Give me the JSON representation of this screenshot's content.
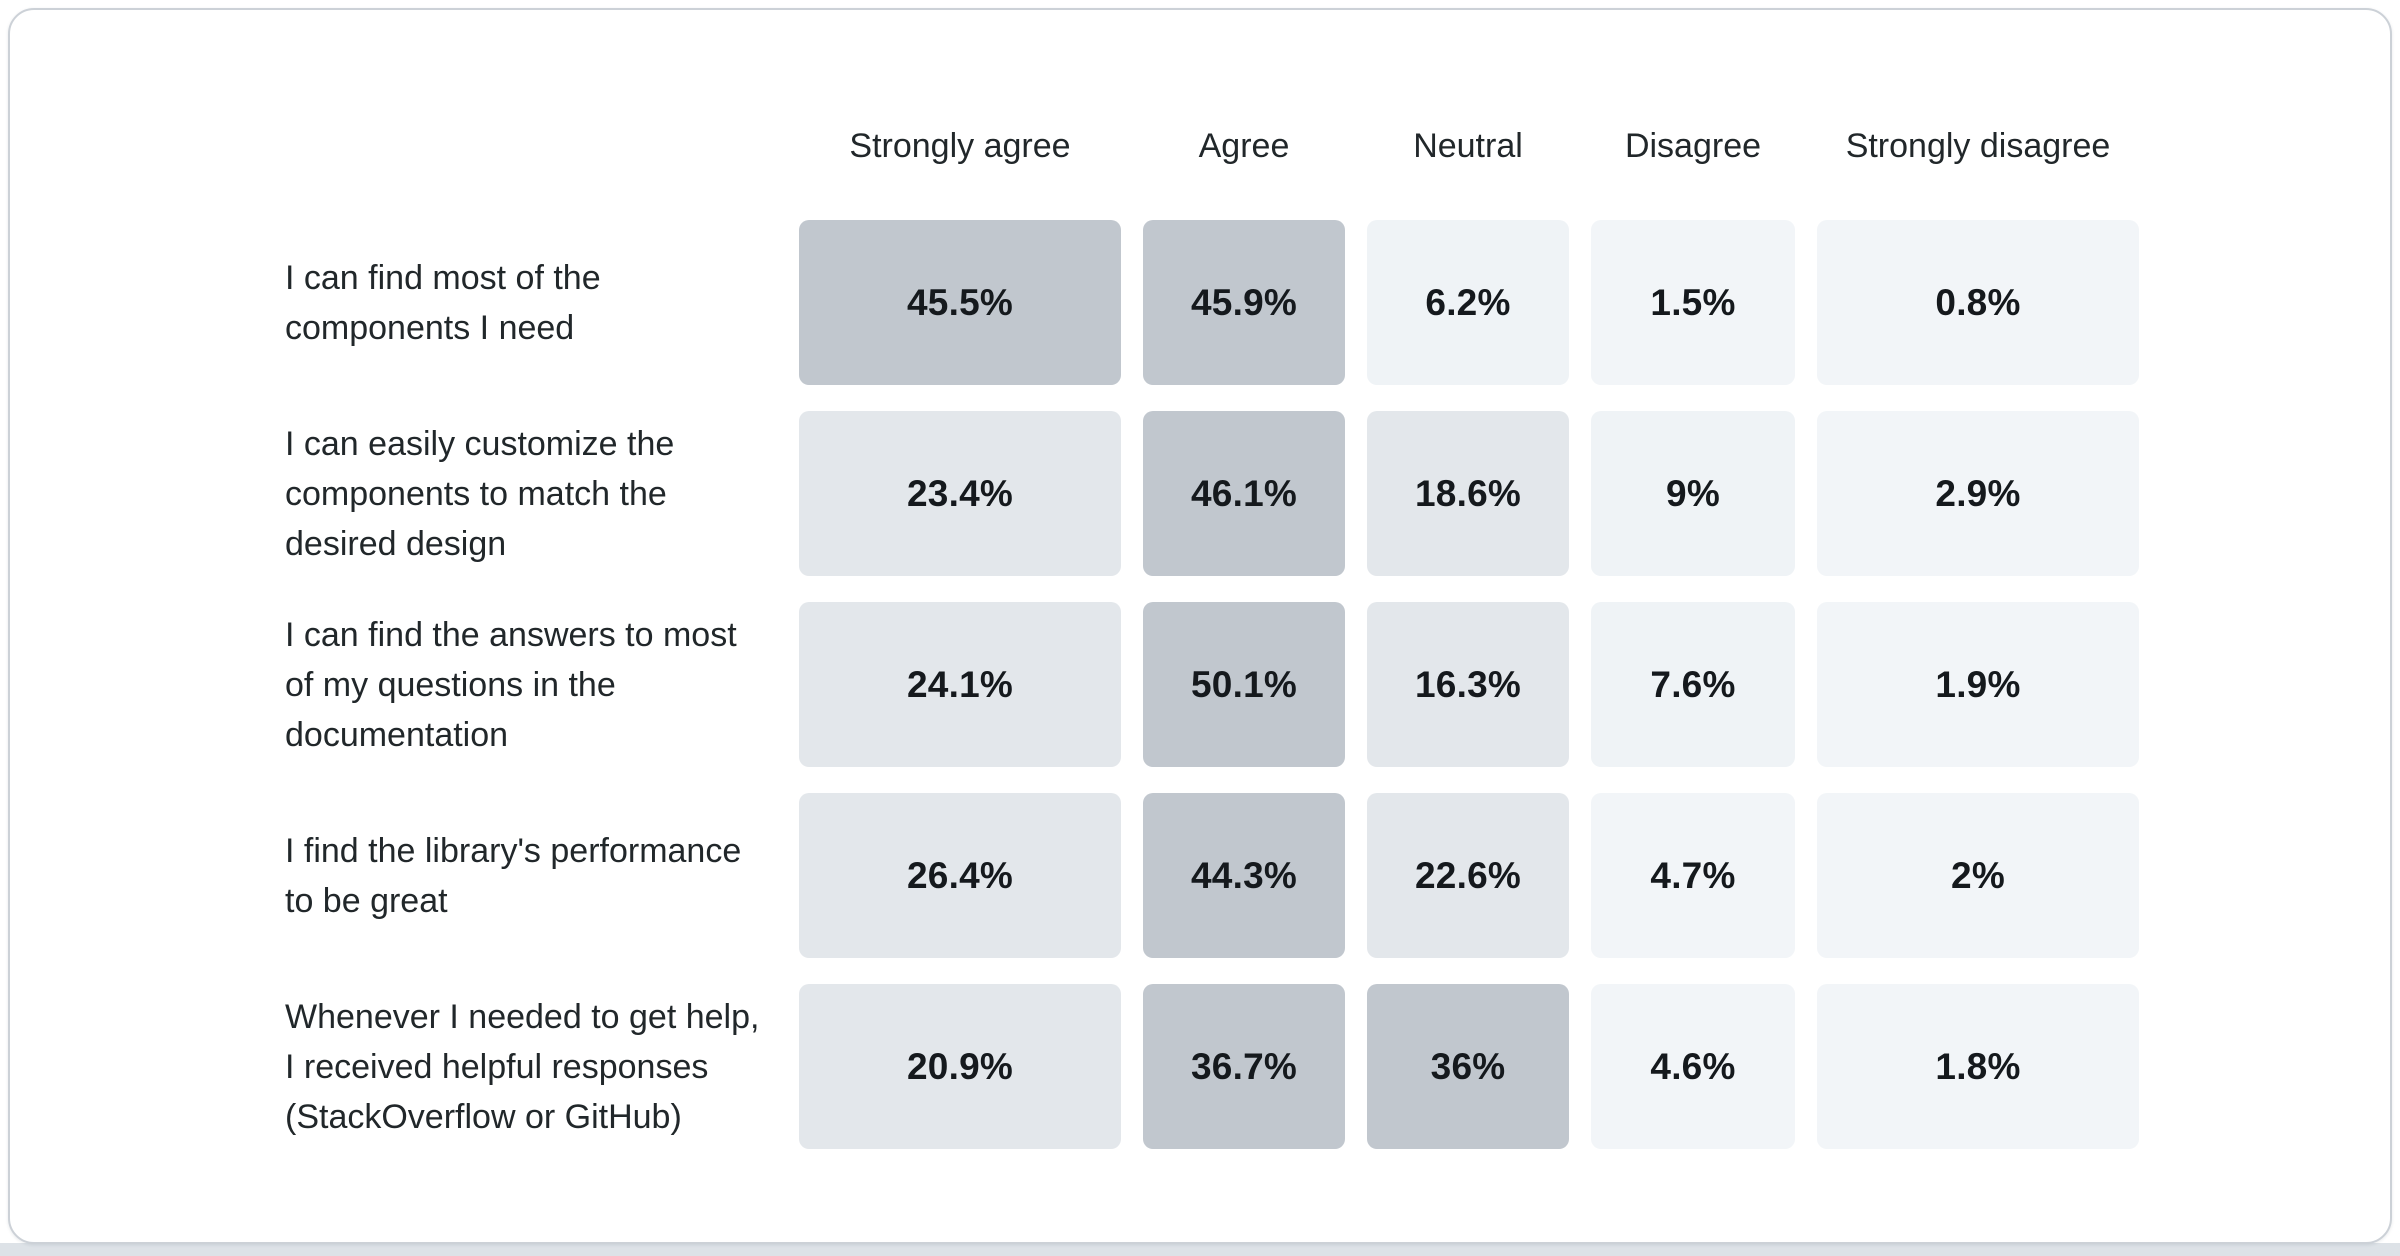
{
  "page": {
    "background": "#ffffff",
    "card_border_color": "#ccd1d7",
    "bottom_bar_color": "#dde2e7"
  },
  "chart_data": {
    "type": "heatmap",
    "title": "",
    "description": "Likert-scale survey results heatmap: agreement percentages per statement",
    "columns": [
      "Strongly agree",
      "Agree",
      "Neutral",
      "Disagree",
      "Strongly disagree"
    ],
    "palette": {
      "high": "#c1c7ce",
      "mid": "#e3e7eb",
      "low": "#eff3f6",
      "min": "#f2f5f8"
    },
    "text_color": "#15191d",
    "label_color": "#21272a",
    "rows": [
      {
        "label": "I can find most of the components I need",
        "values": [
          45.5,
          45.9,
          6.2,
          1.5,
          0.8
        ],
        "display": [
          "45.5%",
          "45.9%",
          "6.2%",
          "1.5%",
          "0.8%"
        ],
        "levels": [
          "high",
          "high",
          "low",
          "min",
          "min"
        ]
      },
      {
        "label": "I can easily customize the components to match the desired design",
        "values": [
          23.4,
          46.1,
          18.6,
          9,
          2.9
        ],
        "display": [
          "23.4%",
          "46.1%",
          "18.6%",
          "9%",
          "2.9%"
        ],
        "levels": [
          "mid",
          "high",
          "mid",
          "low",
          "min"
        ]
      },
      {
        "label": "I can find the answers to most of my questions in the documentation",
        "values": [
          24.1,
          50.1,
          16.3,
          7.6,
          1.9
        ],
        "display": [
          "24.1%",
          "50.1%",
          "16.3%",
          "7.6%",
          "1.9%"
        ],
        "levels": [
          "mid",
          "high",
          "mid",
          "low",
          "min"
        ]
      },
      {
        "label": "I find the library's performance to be great",
        "values": [
          26.4,
          44.3,
          22.6,
          4.7,
          2
        ],
        "display": [
          "26.4%",
          "44.3%",
          "22.6%",
          "4.7%",
          "2%"
        ],
        "levels": [
          "mid",
          "high",
          "mid",
          "min",
          "min"
        ]
      },
      {
        "label": "Whenever I needed to get help, I received helpful responses (StackOverflow or GitHub)",
        "values": [
          20.9,
          36.7,
          36,
          4.6,
          1.8
        ],
        "display": [
          "20.9%",
          "36.7%",
          "36%",
          "4.6%",
          "1.8%"
        ],
        "levels": [
          "mid",
          "high",
          "high",
          "min",
          "min"
        ]
      }
    ]
  }
}
